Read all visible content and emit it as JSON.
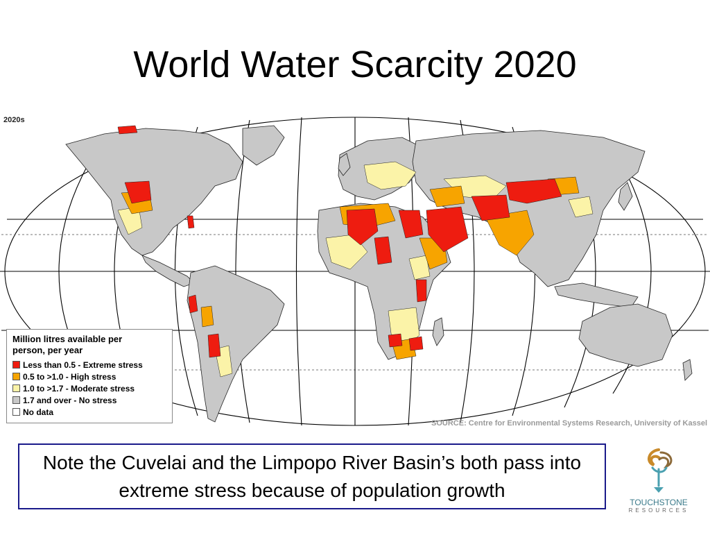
{
  "slide": {
    "title": "World Water Scarcity 2020"
  },
  "map": {
    "decade_label": "2020s",
    "source": "SOURCE: Centre for Environmental Systems Research, University of Kassel",
    "colors": {
      "ocean": "#ffffff",
      "land_no_stress": "#c8c8c8",
      "extreme": "#ee1c10",
      "high": "#f7a400",
      "moderate": "#fbf3a8",
      "border": "#222222"
    }
  },
  "legend": {
    "title": "Million litres available per person, per year",
    "items": [
      {
        "label": "Less than 0.5 - Extreme stress",
        "color": "#ee1c10"
      },
      {
        "label": "0.5 to >1.0 - High stress",
        "color": "#f7a400"
      },
      {
        "label": "1.0 to >1.7 - Moderate stress",
        "color": "#fbf3a8"
      },
      {
        "label": "1.7 and over - No stress",
        "color": "#c8c8c8"
      },
      {
        "label": "No data",
        "color": "#ffffff"
      }
    ]
  },
  "note": {
    "text": "Note the Cuvelai and the Limpopo River Basin’s both pass into extreme stress because of population growth"
  },
  "logo": {
    "name": "TOUCHSTONE",
    "sub": "RESOURCES"
  }
}
